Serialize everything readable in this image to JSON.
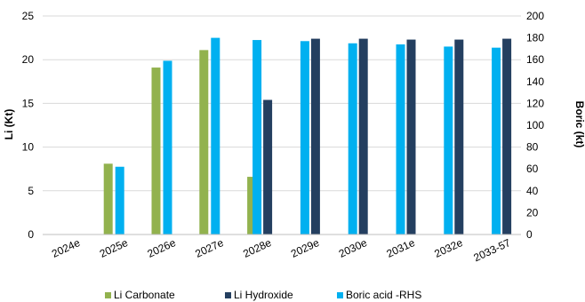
{
  "chart_data": {
    "type": "bar",
    "categories": [
      "2024e",
      "2025e",
      "2026e",
      "2027e",
      "2028e",
      "2029e",
      "2030e",
      "2031e",
      "2032e",
      "2033-57"
    ],
    "ylabel": "Li (Kt)",
    "y2label": "Boric (kt)",
    "ylim": [
      0,
      25
    ],
    "y2lim": [
      0,
      200
    ],
    "yticks": [
      "0",
      "5",
      "10",
      "15",
      "20",
      "25"
    ],
    "y2ticks": [
      "0",
      "20",
      "40",
      "60",
      "80",
      "100",
      "120",
      "140",
      "160",
      "180",
      "200"
    ],
    "grid": true,
    "legend_position": "bottom",
    "series": [
      {
        "name": "Li Carbonate",
        "axis": "left",
        "color": "#92b24e",
        "values": [
          0,
          8.1,
          19.1,
          21.1,
          6.6,
          0,
          0,
          0,
          0,
          0
        ]
      },
      {
        "name": "Li Hydroxide",
        "axis": "left",
        "color": "#243f60",
        "values": [
          0,
          0,
          0,
          0,
          15.4,
          22.4,
          22.4,
          22.3,
          22.3,
          22.4
        ]
      },
      {
        "name": "Boric acid -RHS",
        "axis": "right",
        "color": "#00b0f0",
        "values": [
          0,
          62,
          159,
          180,
          178,
          177,
          175,
          174,
          172,
          171
        ]
      }
    ]
  }
}
